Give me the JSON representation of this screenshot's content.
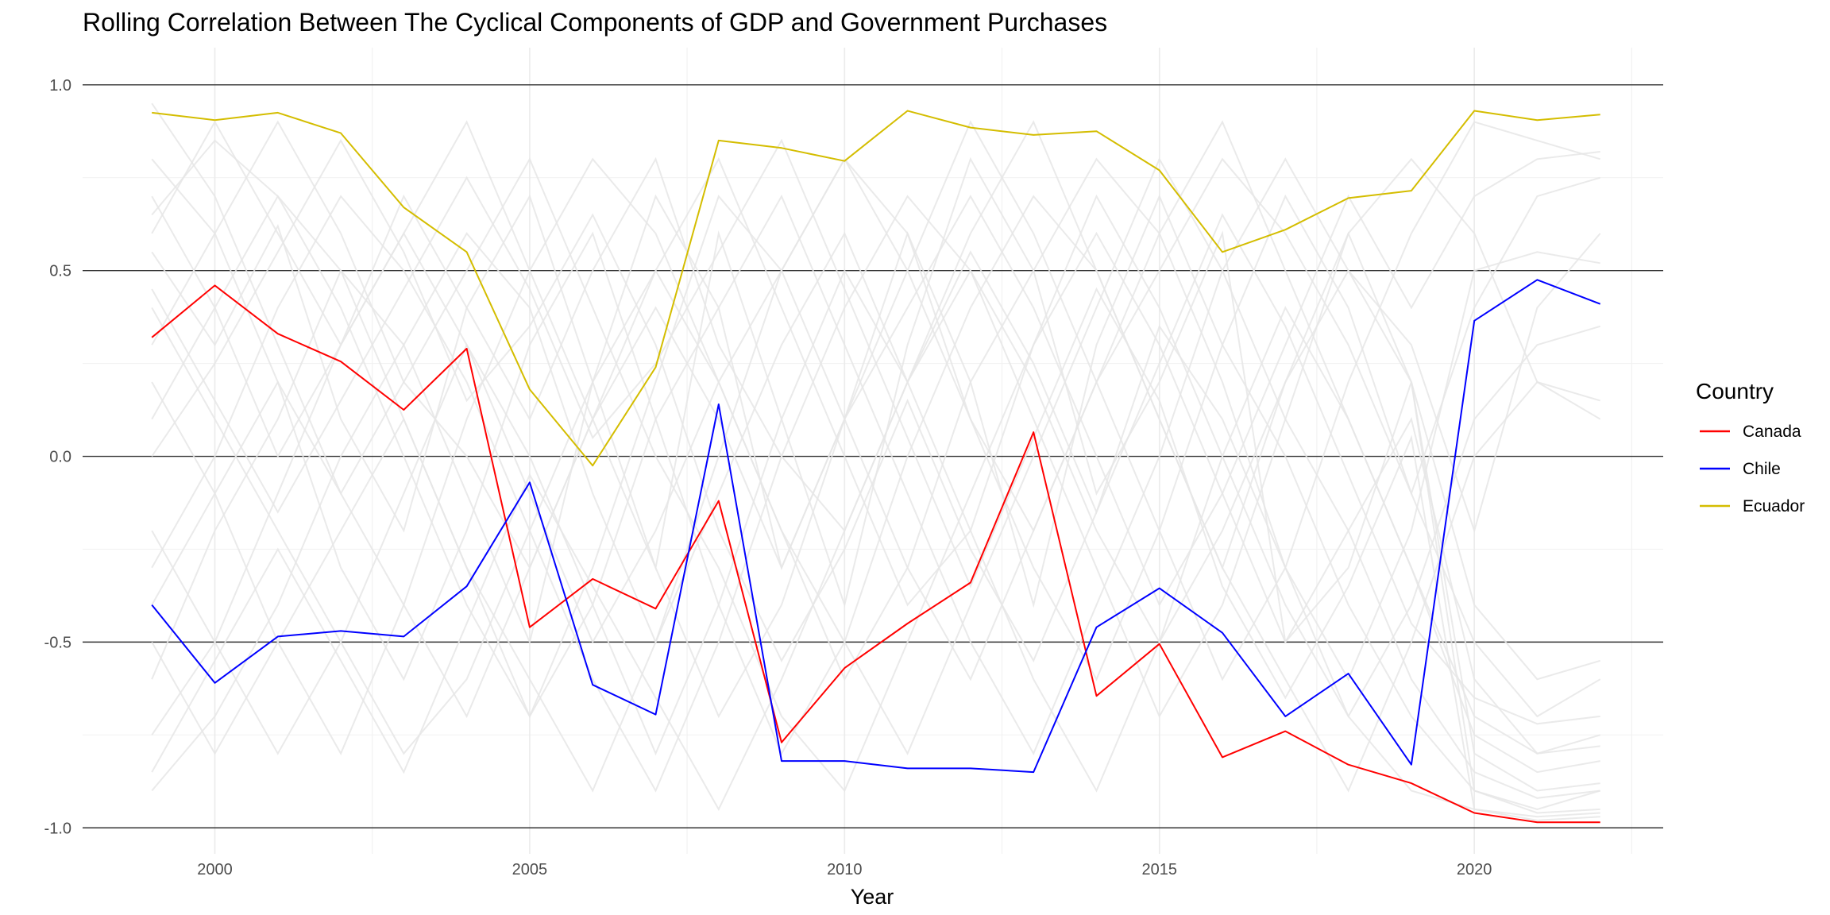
{
  "chart_data": {
    "type": "line",
    "title": "Rolling Correlation Between The Cyclical Components of GDP and Government Purchases",
    "xlabel": "Year",
    "ylabel": "",
    "xlim": [
      1997.9,
      2023.0
    ],
    "ylim": [
      -1.07,
      1.1
    ],
    "x_ticks": [
      2000,
      2005,
      2010,
      2015,
      2020
    ],
    "x_minor_ticks": [
      2002.5,
      2007.5,
      2012.5,
      2017.5,
      2022.5
    ],
    "y_ticks": [
      1.0,
      0.5,
      0.0,
      -0.5,
      -1.0
    ],
    "y_tick_labels": [
      "1.0",
      "0.5",
      "0.0",
      "-0.5",
      "-1.0"
    ],
    "y_minor_ticks": [
      0.75,
      0.25,
      -0.25,
      -0.75
    ],
    "grid": true,
    "legend": {
      "title": "Country",
      "position": "right"
    },
    "x": [
      1999,
      2000,
      2001,
      2002,
      2003,
      2004,
      2005,
      2006,
      2007,
      2008,
      2009,
      2010,
      2011,
      2012,
      2013,
      2014,
      2015,
      2016,
      2017,
      2018,
      2019,
      2020,
      2021,
      2022
    ],
    "series": [
      {
        "name": "Canada",
        "color": "#ff0000",
        "values": [
          0.32,
          0.46,
          0.33,
          0.255,
          0.125,
          0.29,
          -0.46,
          -0.33,
          -0.41,
          -0.12,
          -0.77,
          -0.57,
          -0.45,
          -0.34,
          0.065,
          -0.645,
          -0.505,
          -0.81,
          -0.74,
          -0.83,
          -0.88,
          -0.96,
          -0.985,
          -0.985
        ]
      },
      {
        "name": "Chile",
        "color": "#0000ff",
        "values": [
          -0.4,
          -0.61,
          -0.485,
          -0.47,
          -0.485,
          -0.35,
          -0.07,
          -0.615,
          -0.695,
          0.14,
          -0.82,
          -0.82,
          -0.84,
          -0.84,
          -0.85,
          -0.46,
          -0.355,
          -0.475,
          -0.7,
          -0.585,
          -0.83,
          0.365,
          0.475,
          0.41
        ]
      },
      {
        "name": "Ecuador",
        "color": "#d4bd00",
        "values": [
          0.925,
          0.905,
          0.925,
          0.87,
          0.67,
          0.55,
          0.18,
          -0.025,
          0.24,
          0.85,
          0.83,
          0.795,
          0.93,
          0.885,
          0.865,
          0.875,
          0.77,
          0.55,
          0.61,
          0.695,
          0.715,
          0.93,
          0.905,
          0.92
        ]
      }
    ],
    "background_series_color": "#e6e6e6",
    "background_series": [
      [
        0.55,
        0.3,
        0.62,
        0.1,
        -0.2,
        0.4,
        0.7,
        0.2,
        -0.3,
        0.6,
        0.1,
        -0.4,
        0.3,
        0.8,
        0.5,
        -0.1,
        0.2,
        0.6,
        -0.5,
        -0.2,
        0.1,
        -0.6,
        -0.8,
        -0.75
      ],
      [
        -0.6,
        -0.2,
        0.1,
        0.5,
        0.3,
        -0.1,
        -0.5,
        0.2,
        0.7,
        0.4,
        -0.3,
        0.1,
        0.6,
        0.2,
        -0.4,
        0.3,
        0.7,
        0.3,
        0.0,
        -0.4,
        -0.7,
        -0.9,
        -0.95,
        -0.9
      ],
      [
        0.8,
        0.6,
        0.2,
        -0.3,
        -0.6,
        -0.2,
        0.3,
        0.6,
        0.1,
        -0.4,
        -0.8,
        -0.5,
        0.0,
        0.4,
        0.7,
        0.5,
        0.1,
        -0.3,
        0.2,
        0.5,
        0.3,
        -0.2,
        0.4,
        0.6
      ],
      [
        -0.9,
        -0.7,
        -0.4,
        0.0,
        0.3,
        0.6,
        0.4,
        -0.1,
        -0.5,
        0.0,
        0.5,
        0.8,
        0.6,
        0.1,
        -0.3,
        -0.6,
        -0.2,
        0.3,
        0.7,
        0.4,
        -0.1,
        -0.5,
        -0.7,
        -0.6
      ],
      [
        0.2,
        -0.1,
        -0.5,
        -0.8,
        -0.4,
        0.1,
        0.5,
        0.8,
        0.6,
        0.2,
        -0.2,
        -0.6,
        -0.3,
        0.2,
        0.5,
        0.8,
        0.6,
        0.2,
        -0.3,
        -0.7,
        -0.9,
        -0.95,
        -0.97,
        -0.96
      ],
      [
        0.65,
        0.85,
        0.7,
        0.4,
        0.0,
        -0.4,
        -0.7,
        -0.3,
        0.2,
        0.7,
        0.5,
        0.1,
        -0.3,
        -0.6,
        -0.2,
        0.2,
        0.5,
        0.8,
        0.6,
        0.3,
        -0.1,
        0.4,
        0.7,
        0.75
      ],
      [
        -0.3,
        0.0,
        0.4,
        0.7,
        0.5,
        0.2,
        -0.2,
        -0.6,
        -0.9,
        -0.5,
        0.0,
        0.4,
        0.7,
        0.5,
        0.1,
        -0.3,
        -0.7,
        -0.4,
        0.1,
        0.6,
        0.8,
        0.6,
        0.2,
        0.1
      ],
      [
        0.4,
        0.1,
        -0.2,
        -0.5,
        -0.8,
        -0.6,
        -0.2,
        0.2,
        0.5,
        0.8,
        0.4,
        0.0,
        -0.4,
        -0.2,
        0.3,
        0.6,
        0.3,
        -0.1,
        -0.5,
        -0.3,
        0.2,
        -0.8,
        -0.9,
        -0.88
      ],
      [
        -0.75,
        -0.5,
        -0.1,
        0.3,
        0.6,
        0.9,
        0.5,
        0.1,
        -0.3,
        -0.7,
        -0.4,
        0.1,
        0.5,
        0.9,
        0.6,
        0.2,
        -0.2,
        -0.6,
        -0.3,
        0.2,
        0.6,
        0.9,
        0.85,
        0.8
      ],
      [
        0.1,
        0.4,
        0.7,
        0.5,
        0.1,
        -0.3,
        -0.6,
        -0.9,
        -0.5,
        -0.1,
        0.3,
        0.6,
        0.2,
        -0.2,
        -0.6,
        -0.9,
        -0.5,
        0.0,
        0.4,
        0.1,
        -0.3,
        -0.7,
        -0.8,
        -0.78
      ],
      [
        0.95,
        0.7,
        0.3,
        -0.1,
        0.2,
        0.5,
        0.8,
        0.4,
        0.0,
        -0.3,
        -0.7,
        -0.9,
        -0.5,
        -0.1,
        0.3,
        0.7,
        0.4,
        0.0,
        -0.4,
        -0.7,
        -0.4,
        0.1,
        0.3,
        0.35
      ],
      [
        -0.5,
        -0.8,
        -0.5,
        -0.2,
        0.1,
        -0.3,
        -0.7,
        -0.4,
        0.1,
        0.4,
        0.7,
        0.3,
        -0.1,
        -0.5,
        -0.8,
        -0.4,
        0.0,
        0.5,
        0.8,
        0.5,
        0.2,
        -0.4,
        -0.6,
        -0.55
      ],
      [
        0.3,
        0.6,
        0.9,
        0.6,
        0.2,
        0.0,
        -0.3,
        0.1,
        0.5,
        0.2,
        -0.2,
        -0.5,
        -0.8,
        -0.4,
        0.0,
        0.4,
        0.8,
        0.5,
        0.1,
        -0.2,
        -0.6,
        -0.85,
        -0.92,
        -0.9
      ],
      [
        -0.2,
        -0.5,
        -0.8,
        -0.5,
        -0.1,
        0.3,
        0.0,
        -0.4,
        -0.8,
        -0.4,
        0.1,
        0.5,
        0.2,
        0.6,
        0.9,
        0.5,
        0.1,
        -0.3,
        -0.6,
        -0.9,
        -0.5,
        0.0,
        0.2,
        0.15
      ],
      [
        0.7,
        0.4,
        0.0,
        0.3,
        0.7,
        0.4,
        0.1,
        0.5,
        0.8,
        0.3,
        0.0,
        -0.2,
        0.2,
        0.5,
        0.2,
        -0.2,
        -0.5,
        -0.2,
        0.2,
        0.6,
        0.2,
        -0.9,
        -0.96,
        -0.95
      ],
      [
        0.0,
        0.25,
        0.55,
        0.85,
        0.55,
        0.15,
        0.35,
        0.65,
        0.3,
        -0.2,
        -0.55,
        -0.25,
        0.15,
        -0.25,
        -0.55,
        -0.15,
        0.25,
        0.65,
        0.35,
        -0.05,
        -0.45,
        -0.65,
        -0.72,
        -0.7
      ],
      [
        -0.85,
        -0.55,
        -0.25,
        -0.55,
        -0.85,
        -0.45,
        -0.05,
        -0.35,
        -0.65,
        -0.95,
        -0.6,
        -0.2,
        0.2,
        0.55,
        0.25,
        -0.15,
        0.35,
        0.1,
        -0.3,
        -0.6,
        -0.2,
        0.5,
        0.55,
        0.52
      ],
      [
        0.45,
        0.15,
        -0.15,
        0.15,
        0.45,
        0.75,
        0.45,
        0.05,
        0.25,
        0.55,
        0.85,
        0.45,
        0.05,
        -0.35,
        0.05,
        0.45,
        0.15,
        -0.35,
        -0.65,
        -0.35,
        0.05,
        -0.95,
        -0.98,
        -0.97
      ],
      [
        -0.4,
        -0.1,
        0.2,
        -0.1,
        -0.4,
        -0.7,
        -0.3,
        0.1,
        0.4,
        0.1,
        -0.3,
        0.1,
        0.4,
        0.7,
        0.4,
        0.0,
        -0.4,
        -0.1,
        0.3,
        0.7,
        0.4,
        0.7,
        0.8,
        0.82
      ],
      [
        0.6,
        0.9,
        0.6,
        0.3,
        0.6,
        0.3,
        -0.1,
        -0.5,
        -0.2,
        0.2,
        0.5,
        0.8,
        0.5,
        0.1,
        -0.2,
        0.2,
        0.6,
        0.9,
        0.5,
        0.1,
        -0.3,
        -0.75,
        -0.85,
        -0.82
      ]
    ]
  }
}
